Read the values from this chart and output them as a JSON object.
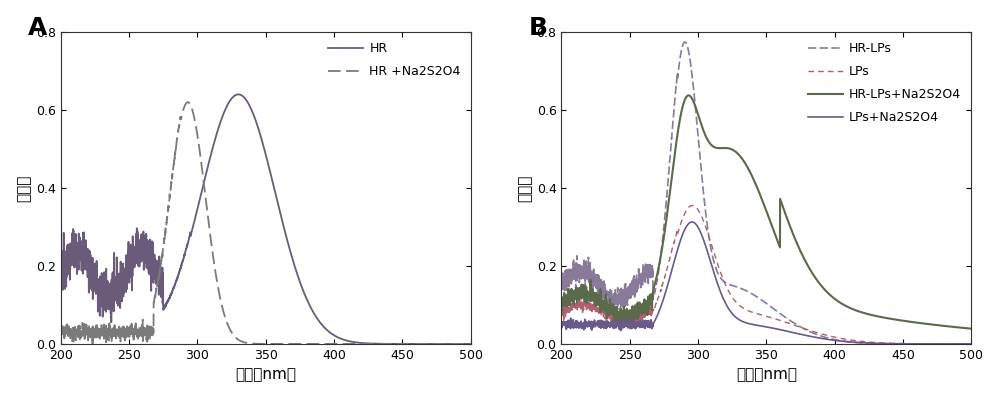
{
  "xlim": [
    200,
    500
  ],
  "ylim": [
    0,
    0.8
  ],
  "yticks": [
    0.0,
    0.2,
    0.4,
    0.6,
    0.8
  ],
  "xticks": [
    200,
    250,
    300,
    350,
    400,
    450,
    500
  ],
  "xlabel": "波长（nm）",
  "ylabel": "吸光度",
  "panel_A_label": "A",
  "panel_B_label": "B",
  "bg_color": "#ffffff",
  "legend_A_1": "HR",
  "legend_A_2": "HR +Na2S2O4",
  "legend_B_1": "HR-LPs",
  "legend_B_2": "LPs",
  "legend_B_3": "HR-LPs+Na2S2O4",
  "legend_B_4": "LPs+Na2S2O4"
}
